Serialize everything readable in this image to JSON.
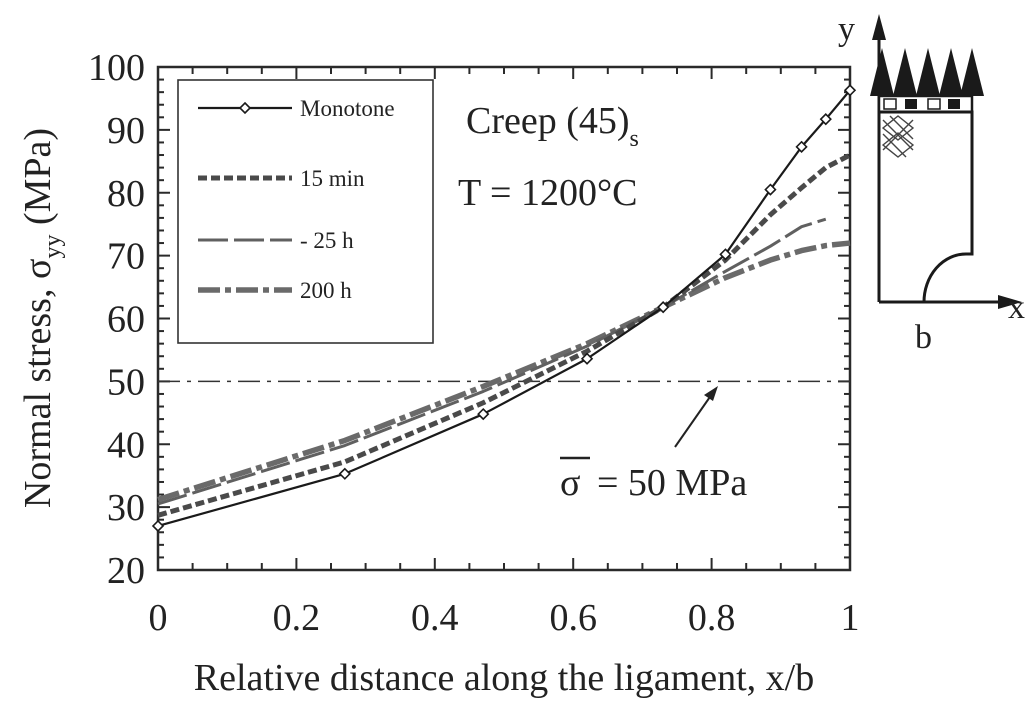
{
  "chart_data": {
    "type": "line",
    "xlabel": "Relative distance along the ligament, x/b",
    "ylabel_main": "Normal stress, σ",
    "ylabel_sub": "yy",
    "ylabel_unit": "(MPa)",
    "xlim": [
      0,
      1
    ],
    "ylim": [
      20,
      100
    ],
    "xticks": [
      0,
      0.2,
      0.4,
      0.6,
      0.8,
      1
    ],
    "xtick_labels": [
      "0",
      "0.2",
      "0.4",
      "0.6",
      "0.8",
      "1"
    ],
    "yticks": [
      20,
      30,
      40,
      50,
      60,
      70,
      80,
      90,
      100
    ],
    "ytick_labels": [
      "20",
      "30",
      "40",
      "50",
      "60",
      "70",
      "80",
      "90",
      "100"
    ],
    "grid": false,
    "legend_position": "top-left",
    "series": [
      {
        "name": "Monotone",
        "style": "solid-diamond",
        "color": "#1a1a1a",
        "x": [
          0,
          0.27,
          0.47,
          0.62,
          0.73,
          0.82,
          0.885,
          0.93,
          0.965,
          1.0
        ],
        "y": [
          27,
          35.3,
          44.8,
          53.6,
          61.8,
          70.2,
          80.5,
          87.3,
          91.7,
          96.3
        ]
      },
      {
        "name": "15 min",
        "style": "short-dash",
        "color": "#4a4a4a",
        "x": [
          0,
          0.27,
          0.47,
          0.62,
          0.73,
          0.82,
          0.885,
          0.93,
          0.965,
          1.0
        ],
        "y": [
          28.7,
          37.2,
          46.6,
          54.8,
          61.8,
          69.3,
          76.5,
          80.8,
          84.0,
          86.0
        ]
      },
      {
        "name": "- 25 h",
        "style": "long-dash",
        "color": "#606060",
        "x": [
          0,
          0.27,
          0.47,
          0.62,
          0.73,
          0.82,
          0.885,
          0.93,
          0.965
        ],
        "y": [
          30.5,
          39.8,
          48.4,
          55.6,
          61.8,
          67.5,
          71.5,
          74.6,
          75.8
        ]
      },
      {
        "name": "200 h",
        "style": "dash-dot",
        "color": "#6a6a6a",
        "x": [
          0,
          0.27,
          0.47,
          0.62,
          0.73,
          0.82,
          0.885,
          0.93,
          0.965,
          1.0
        ],
        "y": [
          31.2,
          40.6,
          49.2,
          56.0,
          61.8,
          66.5,
          69.3,
          70.8,
          71.6,
          72.0
        ]
      }
    ],
    "reference_line": {
      "y": 50,
      "style": "dash-dot"
    },
    "annotations": {
      "title_main": "Creep (45)",
      "title_sub": "s",
      "temperature": "T = 1200°C",
      "sigma_bar": "σ",
      "sigma_value": "= 50 MPa"
    },
    "inset": {
      "y_label": "y",
      "x_label": "x",
      "b_label": "b"
    }
  }
}
